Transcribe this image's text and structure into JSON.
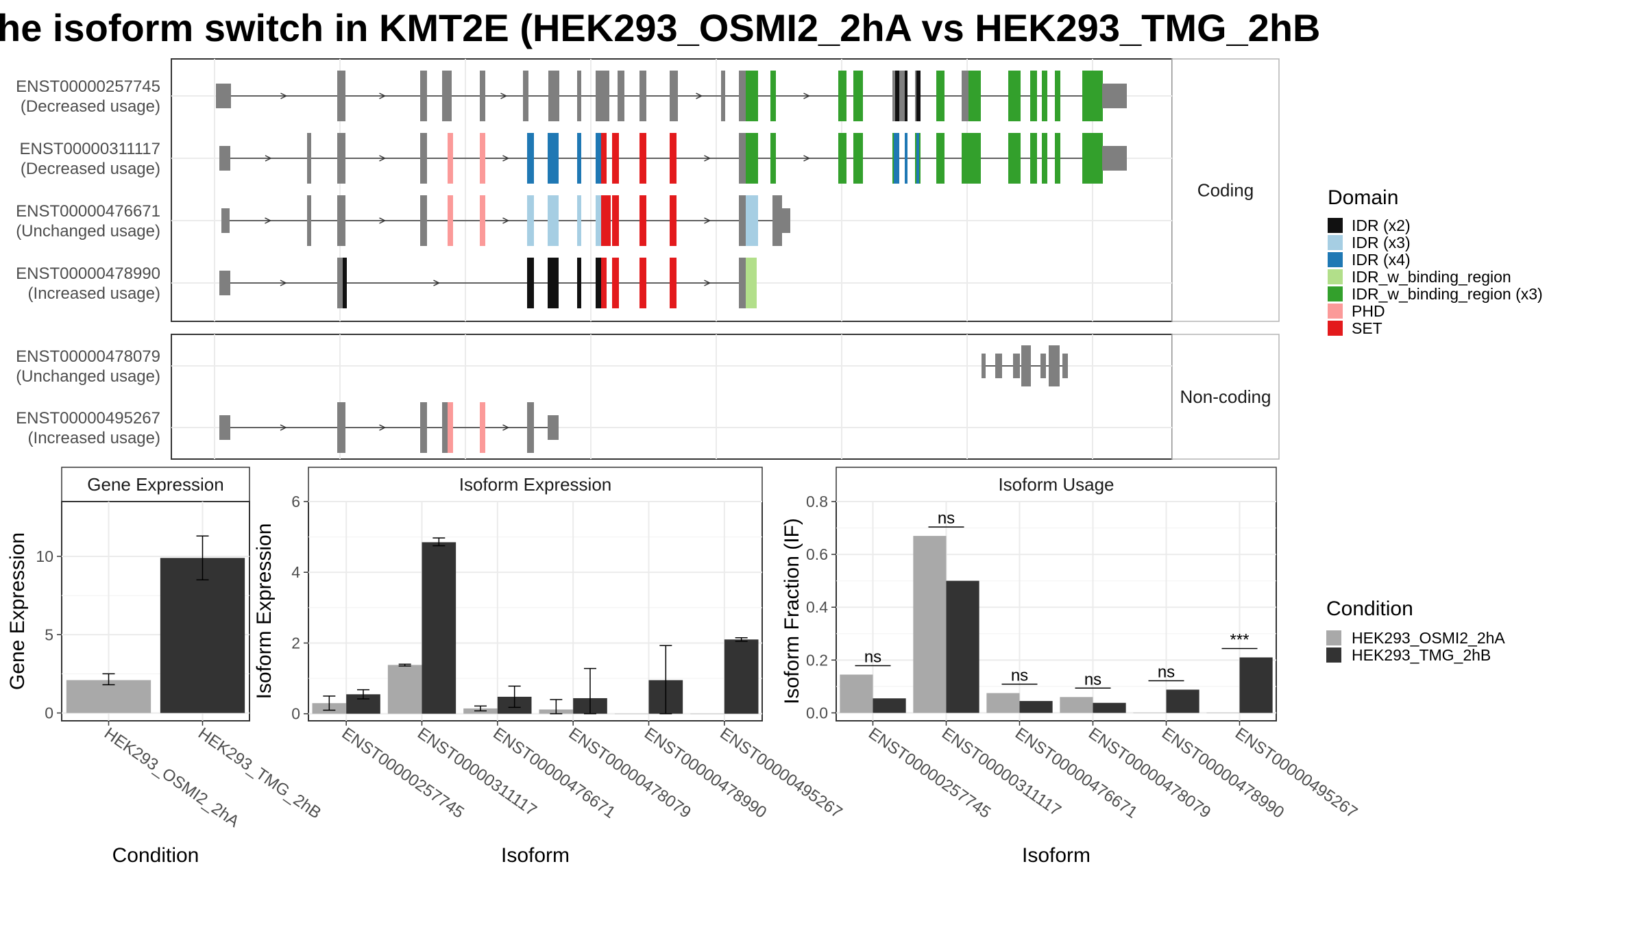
{
  "title": "he isoform switch in KMT2E (HEK293_OSMI2_2hA vs HEK293_TMG_2hB",
  "colors": {
    "cond_a": "#a9a9a9",
    "cond_b": "#333333",
    "exon": "#7f7f7f",
    "IDR (x2)": "#111111",
    "IDR (x3)": "#a6cee3",
    "IDR (x4)": "#1f78b4",
    "IDR_w_binding_region": "#b2df8a",
    "IDR_w_binding_region (x3)": "#33a02c",
    "PHD": "#fb9a99",
    "SET": "#e31a1c"
  },
  "transcripts": {
    "panels": [
      {
        "label": "Coding",
        "rows": [
          {
            "id": "ENST00000257745",
            "usage": "(Decreased usage)"
          },
          {
            "id": "ENST00000311117",
            "usage": "(Decreased usage)"
          },
          {
            "id": "ENST00000476671",
            "usage": "(Unchanged usage)"
          },
          {
            "id": "ENST00000478990",
            "usage": "(Increased usage)"
          }
        ]
      },
      {
        "label": "Non-coding",
        "rows": [
          {
            "id": "ENST00000478079",
            "usage": "(Unchanged usage)"
          },
          {
            "id": "ENST00000495267",
            "usage": "(Increased usage)"
          }
        ]
      }
    ]
  },
  "domain_legend": {
    "title": "Domain",
    "items": [
      "IDR (x2)",
      "IDR (x3)",
      "IDR (x4)",
      "IDR_w_binding_region",
      "IDR_w_binding_region (x3)",
      "PHD",
      "SET"
    ]
  },
  "condition_legend": {
    "title": "Condition",
    "items": [
      "HEK293_OSMI2_2hA",
      "HEK293_TMG_2hB"
    ]
  },
  "chart_data": [
    {
      "type": "bar",
      "title": "Gene Expression",
      "xlabel": "Condition",
      "ylabel": "Gene Expression",
      "categories": [
        "HEK293_OSMI2_2hA",
        "HEK293_TMG_2hB"
      ],
      "values": [
        2.1,
        9.9
      ],
      "errors": [
        [
          1.8,
          2.5
        ],
        [
          8.5,
          11.3
        ]
      ],
      "ylim": [
        -0.5,
        13.5
      ],
      "yticks": [
        0,
        5,
        10
      ]
    },
    {
      "type": "bar",
      "title": "Isoform Expression",
      "xlabel": "Isoform",
      "ylabel": "Isoform Expression",
      "categories": [
        "ENST00000257745",
        "ENST00000311117",
        "ENST00000476671",
        "ENST00000478079",
        "ENST00000478990",
        "ENST00000495267"
      ],
      "series": [
        {
          "name": "HEK293_OSMI2_2hA",
          "values": [
            0.3,
            1.38,
            0.15,
            0.12,
            0.0,
            0.0
          ],
          "errors": [
            [
              0.1,
              0.5
            ],
            [
              1.35,
              1.4
            ],
            [
              0.08,
              0.22
            ],
            [
              0.0,
              0.4
            ],
            [
              0.0,
              0.0
            ],
            [
              0.0,
              0.0
            ]
          ]
        },
        {
          "name": "HEK293_TMG_2hB",
          "values": [
            0.55,
            4.85,
            0.48,
            0.44,
            0.95,
            2.1
          ],
          "errors": [
            [
              0.42,
              0.68
            ],
            [
              4.75,
              4.97
            ],
            [
              0.18,
              0.78
            ],
            [
              0.0,
              1.28
            ],
            [
              0.0,
              1.93
            ],
            [
              2.05,
              2.15
            ]
          ]
        }
      ],
      "ylim": [
        -0.2,
        6.0
      ],
      "yticks": [
        0,
        2,
        4,
        6
      ]
    },
    {
      "type": "bar",
      "title": "Isoform Usage",
      "xlabel": "Isoform",
      "ylabel": "Isoform Fraction (IF)",
      "categories": [
        "ENST00000257745",
        "ENST00000311117",
        "ENST00000476671",
        "ENST00000478079",
        "ENST00000478990",
        "ENST00000495267"
      ],
      "series": [
        {
          "name": "HEK293_OSMI2_2hA",
          "values": [
            0.145,
            0.67,
            0.075,
            0.06,
            0.0,
            0.0
          ]
        },
        {
          "name": "HEK293_TMG_2hB",
          "values": [
            0.055,
            0.5,
            0.045,
            0.038,
            0.088,
            0.21
          ]
        }
      ],
      "annotations": [
        "ns",
        "ns",
        "ns",
        "ns",
        "ns",
        "***"
      ],
      "ylim": [
        -0.03,
        0.8
      ],
      "yticks": [
        0.0,
        0.2,
        0.4,
        0.6,
        0.8
      ]
    }
  ]
}
